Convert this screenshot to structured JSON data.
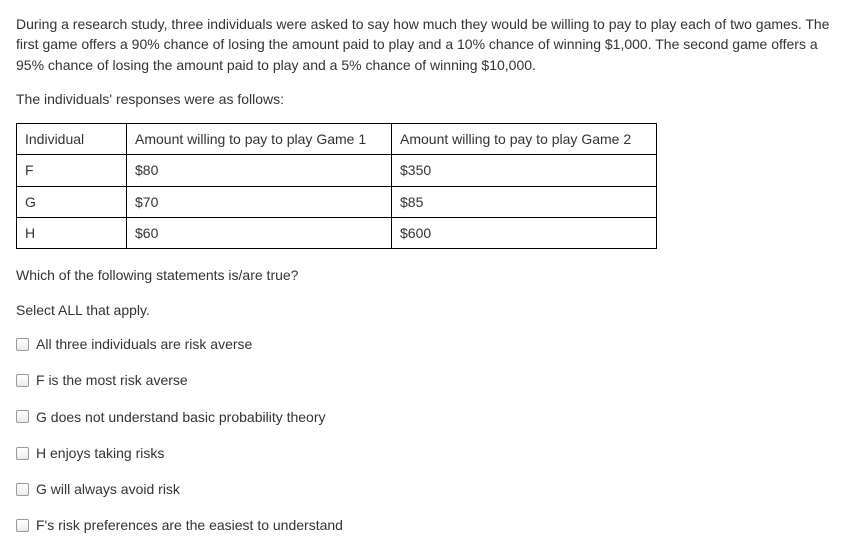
{
  "intro1": "During a research study, three individuals were asked to say how much they would be willing to pay to play each of two games. The first game offers a 90% chance of losing the amount paid to play and a 10% chance of winning $1,000. The second game offers a 95% chance of losing the amount paid to play and a 5% chance of winning $10,000.",
  "intro2": "The individuals' responses were as follows:",
  "table": {
    "headers": [
      "Individual",
      "Amount willing to pay to play Game 1",
      "Amount willing to pay to play Game 2"
    ],
    "rows": [
      [
        "F",
        "$80",
        "$350"
      ],
      [
        "G",
        "$70",
        "$85"
      ],
      [
        "H",
        "$60",
        "$600"
      ]
    ]
  },
  "question": "Which of the following statements is/are true?",
  "instruction": "Select ALL that apply.",
  "options": [
    "All three individuals are risk averse",
    "F is the most risk averse",
    "G does not understand basic probability theory",
    "H enjoys taking risks",
    "G will always avoid risk",
    "F's risk preferences are the easiest to understand"
  ]
}
